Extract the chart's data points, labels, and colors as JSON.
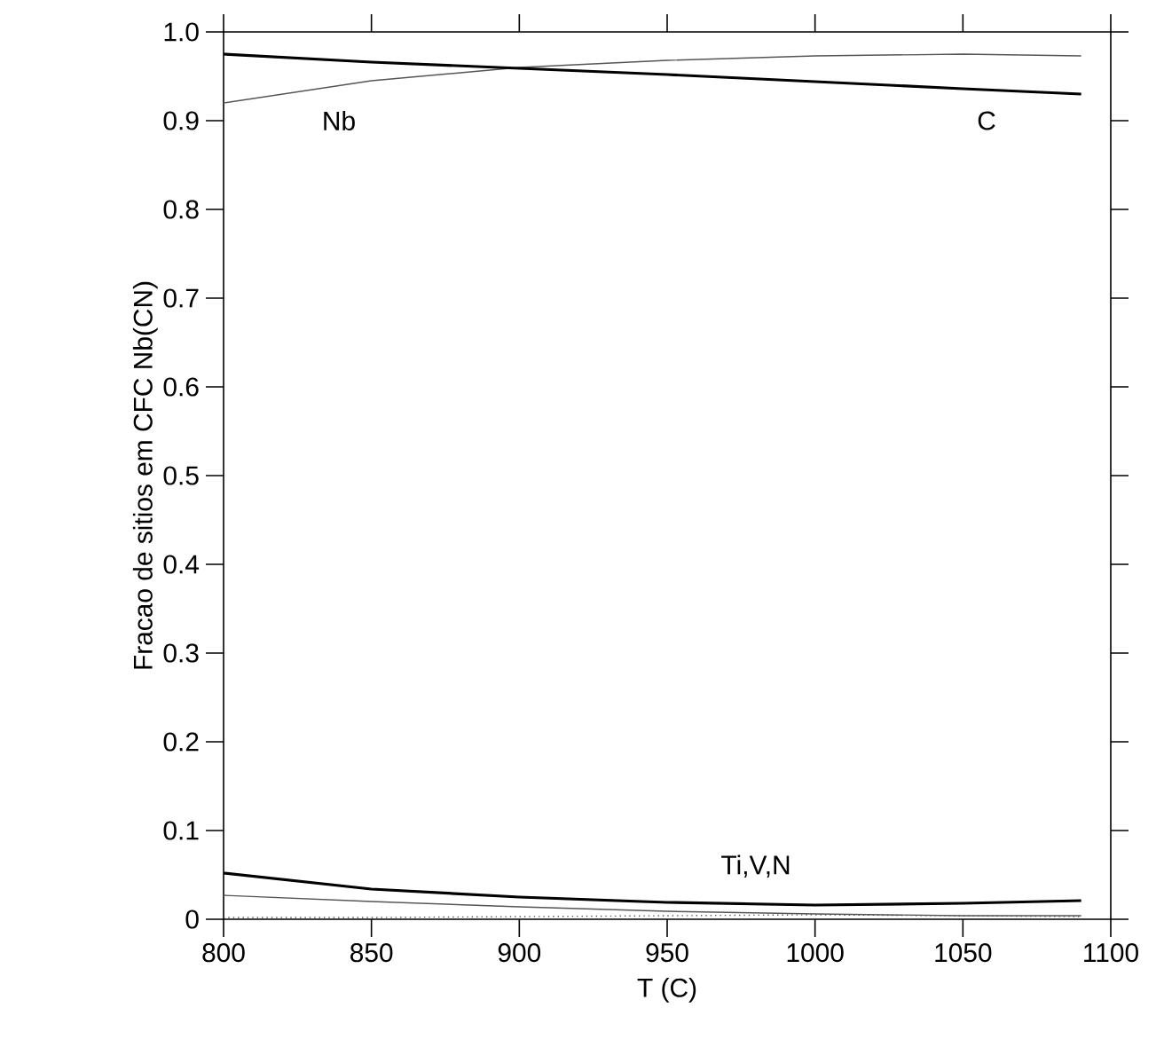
{
  "chart_data": {
    "type": "line",
    "xlabel": "T (C)",
    "ylabel": "Fracao de sitios em CFC Nb(CN)",
    "xlim": [
      800,
      1100
    ],
    "xticks": [
      800,
      850,
      900,
      950,
      1000,
      1050,
      1100
    ],
    "ylim": [
      0,
      1.0
    ],
    "yticks": [
      {
        "value": 0,
        "label": "0"
      },
      {
        "value": 0.1,
        "label": "0.1"
      },
      {
        "value": 0.2,
        "label": "0.2"
      },
      {
        "value": 0.3,
        "label": "0.3"
      },
      {
        "value": 0.4,
        "label": "0.4"
      },
      {
        "value": 0.5,
        "label": "0.5"
      },
      {
        "value": 0.6,
        "label": "0.6"
      },
      {
        "value": 0.7,
        "label": "0.7"
      },
      {
        "value": 0.8,
        "label": "0.8"
      },
      {
        "value": 0.9,
        "label": "0.9"
      },
      {
        "value": 1.0,
        "label": "1.0"
      }
    ],
    "x": [
      800,
      850,
      900,
      950,
      1000,
      1050,
      1090
    ],
    "series": [
      {
        "name": "Nb",
        "color": "#555555",
        "values": [
          0.92,
          0.945,
          0.96,
          0.968,
          0.973,
          0.975,
          0.973
        ]
      },
      {
        "name": "C",
        "color": "#000000",
        "values": [
          0.975,
          0.966,
          0.959,
          0.952,
          0.944,
          0.936,
          0.93
        ]
      },
      {
        "color": "#000000",
        "values": [
          0.052,
          0.034,
          0.025,
          0.019,
          0.016,
          0.018,
          0.021
        ]
      },
      {
        "color": "#555555",
        "values": [
          0.027,
          0.02,
          0.014,
          0.009,
          0.006,
          0.004,
          0.004
        ]
      },
      {
        "color": "#555555",
        "line_style": "dotted",
        "values": [
          0.002,
          0.002,
          0.003,
          0.004,
          0.005,
          0.004,
          0.003
        ]
      }
    ],
    "annotations": [
      "Ti,V,N"
    ],
    "grid": false,
    "marker": "none"
  }
}
